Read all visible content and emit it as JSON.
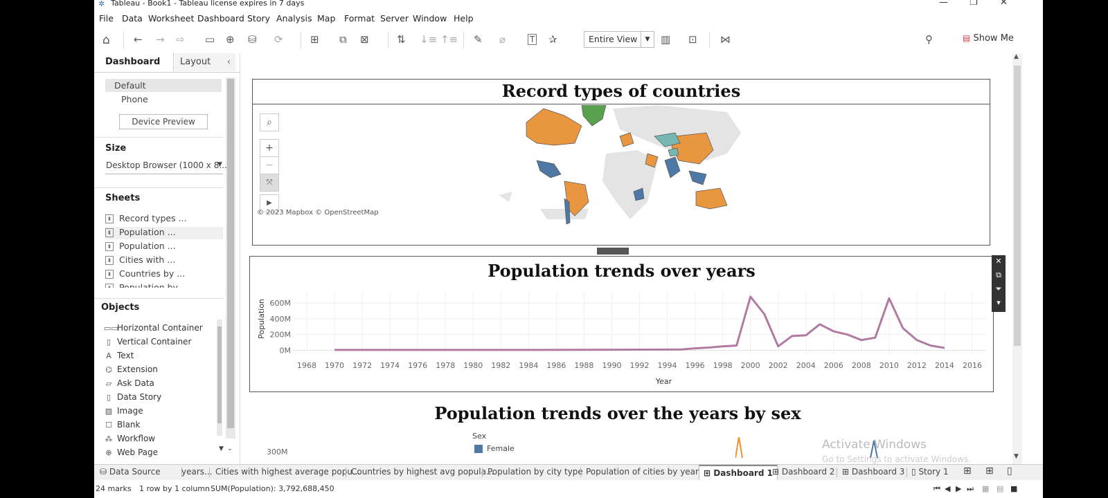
{
  "window": {
    "title": "Tableau - Book1 - Tableau license expires in 7 days",
    "minimize": "—",
    "maximize": "❐",
    "close": "✕"
  },
  "menu": [
    "File",
    "Data",
    "Worksheet",
    "Dashboard",
    "Story",
    "Analysis",
    "Map",
    "Format",
    "Server",
    "Window",
    "Help"
  ],
  "toolbar": {
    "fit_value": "Entire View",
    "show_me_label": "Show Me"
  },
  "left_panel": {
    "tab_dashboard": "Dashboard",
    "tab_layout": "Layout",
    "devices": [
      "Default",
      "Phone"
    ],
    "device_preview_label": "Device Preview",
    "size_heading": "Size",
    "size_value": "Desktop Browser (1000 x 8...",
    "sheets_heading": "Sheets",
    "sheets": [
      "Record types ...",
      "Population ...",
      "Population ...",
      "Cities with ...",
      "Countries by ...",
      "Population by"
    ],
    "objects_heading": "Objects",
    "objects": [
      {
        "label": "Horizontal Container",
        "icon": "horizontal-container-icon"
      },
      {
        "label": "Vertical Container",
        "icon": "vertical-container-icon"
      },
      {
        "label": "Text",
        "icon": "text-icon"
      },
      {
        "label": "Extension",
        "icon": "extension-icon"
      },
      {
        "label": "Ask Data",
        "icon": "ask-data-icon"
      },
      {
        "label": "Data Story",
        "icon": "data-story-icon"
      },
      {
        "label": "Image",
        "icon": "image-icon"
      },
      {
        "label": "Blank",
        "icon": "blank-icon"
      },
      {
        "label": "Workflow",
        "icon": "workflow-icon"
      },
      {
        "label": "Web Page",
        "icon": "web-page-icon"
      }
    ]
  },
  "dashboard": {
    "map_title": "Record types of countries",
    "map_attribution": "© 2023 Mapbox © OpenStreetMap",
    "map_colors": {
      "orange": "#e8963f",
      "blue": "#4e79a7",
      "teal": "#76b7b2",
      "green": "#59a14f",
      "gray": "#e4e4e4"
    },
    "line_title": "Population trends over years",
    "sex_title": "Population trends over the years by sex",
    "sex_legend_title": "Sex",
    "sex_legend_item": "Female",
    "sex_y_label": "300M",
    "line_color": "#b07aa1"
  },
  "chart_data": {
    "type": "line",
    "title": "Population trends over years",
    "xlabel": "Year",
    "ylabel": "Population",
    "xlim": [
      1967,
      2017
    ],
    "ylim": [
      -0.04,
      0.75
    ],
    "x_ticks": [
      1968,
      1970,
      1972,
      1974,
      1976,
      1978,
      1980,
      1982,
      1984,
      1986,
      1988,
      1990,
      1992,
      1994,
      1996,
      1998,
      2000,
      2002,
      2004,
      2006,
      2008,
      2010,
      2012,
      2014,
      2016
    ],
    "y_ticks": [
      {
        "v": 0,
        "label": "0M"
      },
      {
        "v": 0.2,
        "label": "200M"
      },
      {
        "v": 0.4,
        "label": "400M"
      },
      {
        "v": 0.6,
        "label": "600M"
      }
    ],
    "series": [
      {
        "x": [
          1970,
          1975,
          1980,
          1985,
          1990,
          1992,
          1994,
          1995,
          1996,
          1997,
          1998,
          1999,
          2000,
          2001,
          2002,
          2003,
          2004,
          2005,
          2006,
          2007,
          2008,
          2009,
          2010,
          2011,
          2012,
          2013,
          2014
        ],
        "y": [
          0.005,
          0.005,
          0.005,
          0.005,
          0.007,
          0.008,
          0.009,
          0.01,
          0.025,
          0.035,
          0.05,
          0.06,
          0.68,
          0.46,
          0.05,
          0.18,
          0.19,
          0.33,
          0.24,
          0.2,
          0.13,
          0.16,
          0.66,
          0.28,
          0.13,
          0.06,
          0.03
        ]
      }
    ]
  },
  "bottom_tabs": {
    "data_source": "Data Source",
    "tabs": [
      "years...",
      "Cities with highest average popu...",
      "Countries by highest avg popula...",
      "Population by city type",
      "Population of cities by year"
    ],
    "dashboards": [
      "Dashboard 1",
      "Dashboard 2",
      "Dashboard 3"
    ],
    "story": "Story 1"
  },
  "watermark": {
    "line1": "Activate Windows",
    "line2": "Go to Settings to activate Windows."
  },
  "status": {
    "marks": "24 marks",
    "rows": "1 row by 1 column",
    "sum": "SUM(Population): 3,792,688,450"
  }
}
